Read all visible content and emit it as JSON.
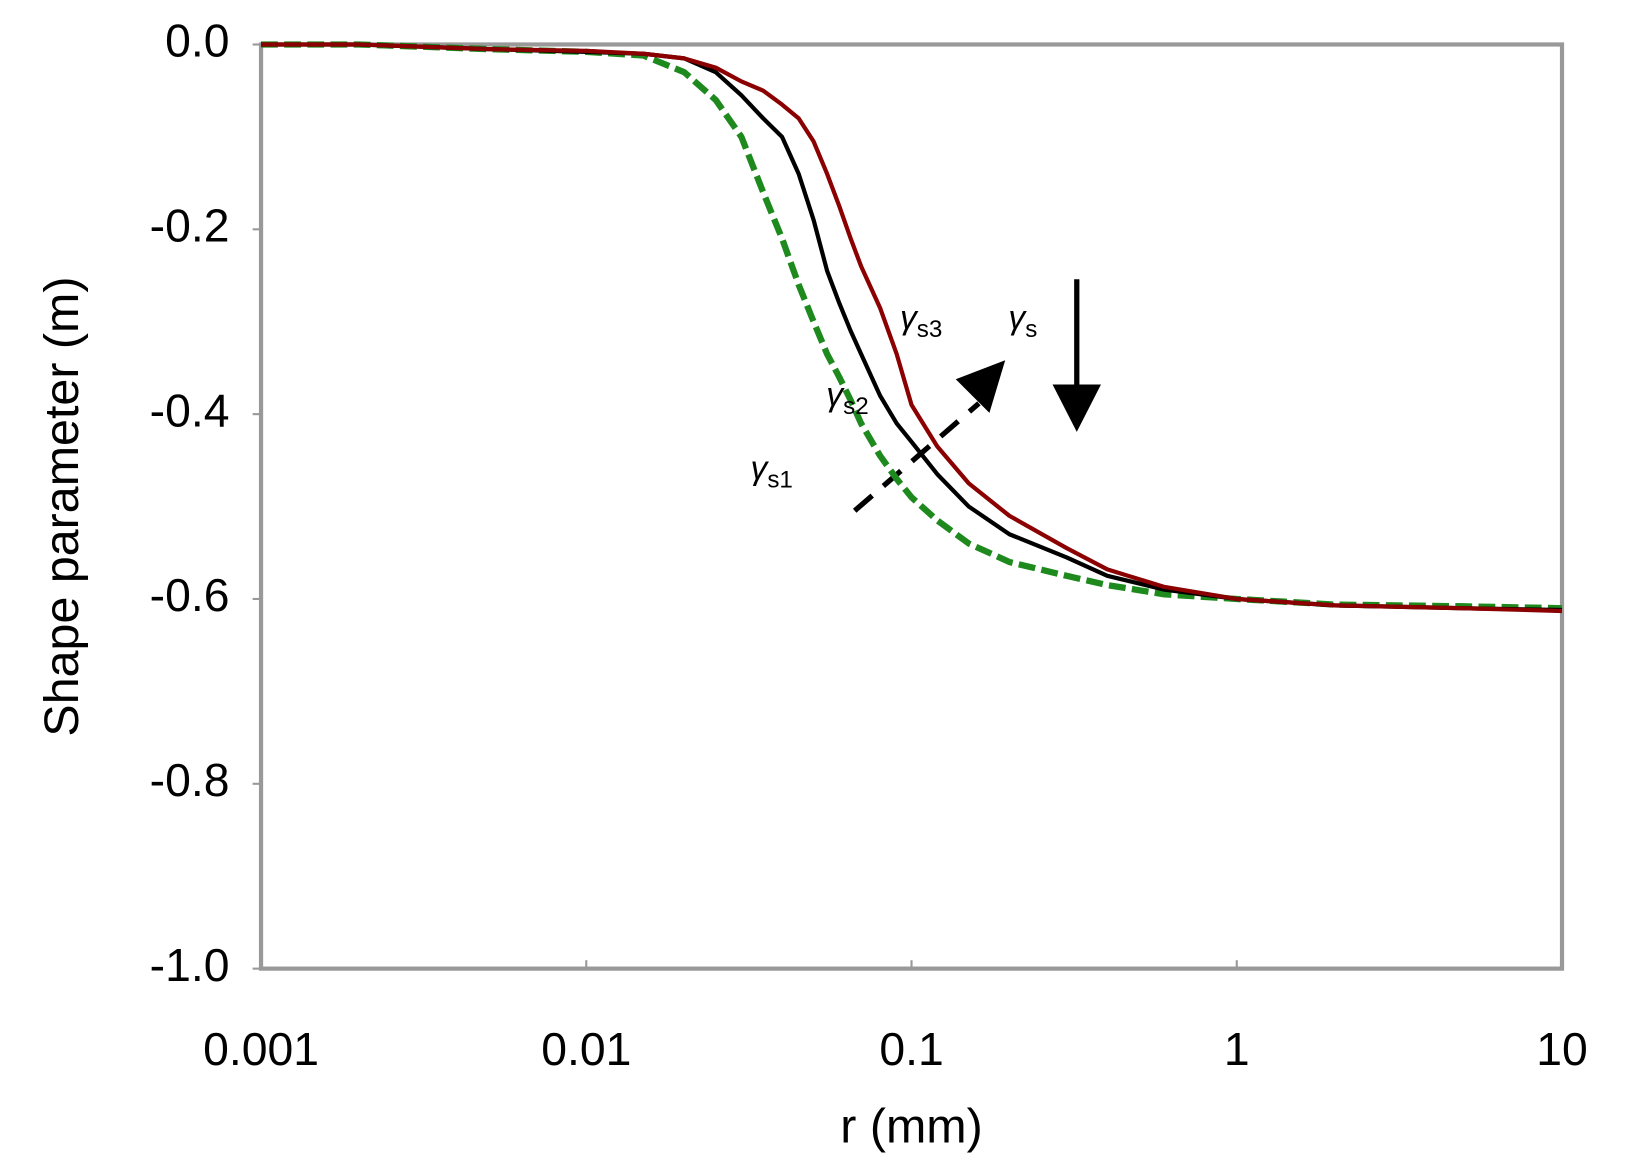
{
  "chart_data": {
    "type": "line",
    "y_label": "Shape parameter (m)",
    "x_label": "r (mm)",
    "x_scale": "log",
    "xlim": [
      0.001,
      10
    ],
    "xticks": [
      0.001,
      0.01,
      0.1,
      1,
      10
    ],
    "ylim": [
      -1.0,
      0
    ],
    "yticks": [
      {
        "value": 0,
        "label": "0.0"
      },
      -0.2,
      -0.4,
      -0.6,
      -0.8,
      {
        "value": -1.0,
        "label": "-1.0"
      }
    ],
    "x": [
      0.001,
      0.002,
      0.005,
      0.01,
      0.015,
      0.02,
      0.025,
      0.03,
      0.035,
      0.04,
      0.045,
      0.05,
      0.055,
      0.06,
      0.065,
      0.07,
      0.08,
      0.09,
      0.1,
      0.12,
      0.15,
      0.2,
      0.3,
      0.4,
      0.6,
      1,
      2,
      5,
      10
    ],
    "series": [
      {
        "name": "γs1",
        "color": "#1e8a1e",
        "dashed": true,
        "values": [
          0,
          0,
          -0.005,
          -0.008,
          -0.012,
          -0.03,
          -0.06,
          -0.1,
          -0.16,
          -0.21,
          -0.26,
          -0.3,
          -0.335,
          -0.36,
          -0.385,
          -0.41,
          -0.445,
          -0.47,
          -0.49,
          -0.515,
          -0.54,
          -0.56,
          -0.575,
          -0.585,
          -0.595,
          -0.6,
          -0.606,
          -0.608,
          -0.61
        ]
      },
      {
        "name": "γs2",
        "color": "#000000",
        "dashed": false,
        "values": [
          0,
          0,
          -0.005,
          -0.008,
          -0.01,
          -0.015,
          -0.03,
          -0.055,
          -0.08,
          -0.1,
          -0.14,
          -0.19,
          -0.245,
          -0.28,
          -0.31,
          -0.335,
          -0.38,
          -0.41,
          -0.43,
          -0.465,
          -0.5,
          -0.53,
          -0.555,
          -0.575,
          -0.59,
          -0.6,
          -0.607,
          -0.61,
          -0.612
        ]
      },
      {
        "name": "γs3",
        "color": "#8b0000",
        "dashed": false,
        "values": [
          0,
          0,
          -0.005,
          -0.007,
          -0.01,
          -0.015,
          -0.025,
          -0.04,
          -0.05,
          -0.065,
          -0.08,
          -0.105,
          -0.14,
          -0.175,
          -0.21,
          -0.24,
          -0.285,
          -0.335,
          -0.39,
          -0.435,
          -0.475,
          -0.51,
          -0.545,
          -0.568,
          -0.587,
          -0.6,
          -0.607,
          -0.61,
          -0.613
        ]
      }
    ],
    "annotations": [
      {
        "symbol": "γ",
        "subscript": "s3"
      },
      {
        "symbol": "γ",
        "subscript": "s2"
      },
      {
        "symbol": "γ",
        "subscript": "s1"
      },
      {
        "symbol": "γ",
        "subscript": "s"
      }
    ]
  }
}
